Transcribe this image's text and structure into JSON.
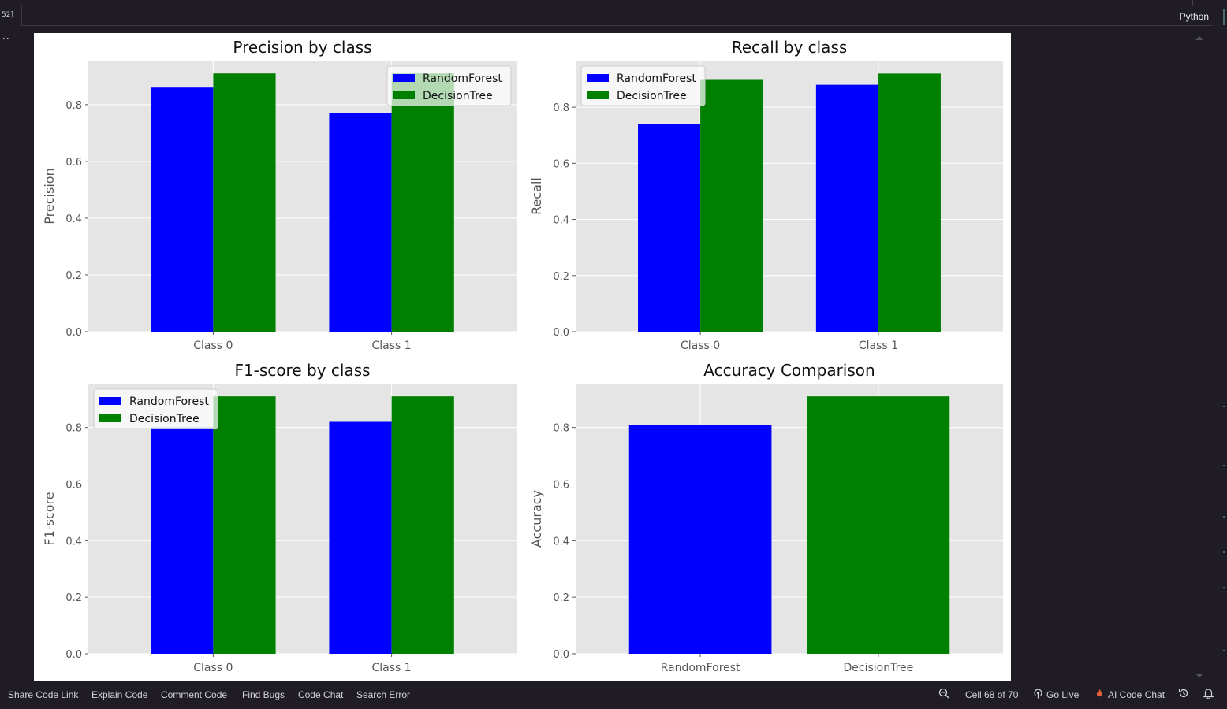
{
  "cell": {
    "execution_count": "52]",
    "kernel": "Python",
    "more_icon": "ellipsis-icon"
  },
  "status_bar": {
    "left_items": [
      "Share Code Link",
      "Explain Code",
      "Comment Code",
      "Find Bugs",
      "Code Chat",
      "Search Error"
    ],
    "cell_position": "Cell 68 of 70",
    "go_live": "Go Live",
    "ai_chat": "AI Code Chat"
  },
  "colors": {
    "random_forest": "#0000ff",
    "decision_tree": "#008000",
    "axes_bg": "#e5e5e5"
  },
  "chart_data": [
    {
      "type": "bar",
      "title": "Precision by class",
      "ylabel": "Precision",
      "xlabel": "",
      "categories": [
        "Class 0",
        "Class 1"
      ],
      "series": [
        {
          "name": "RandomForest",
          "values": [
            0.86,
            0.77
          ]
        },
        {
          "name": "DecisionTree",
          "values": [
            0.91,
            0.91
          ]
        }
      ],
      "ylim": [
        0,
        0.955
      ],
      "yticks": [
        "0.0",
        "0.2",
        "0.4",
        "0.6",
        "0.8"
      ],
      "grid": true,
      "legend": "top-right"
    },
    {
      "type": "bar",
      "title": "Recall by class",
      "ylabel": "Recall",
      "xlabel": "",
      "categories": [
        "Class 0",
        "Class 1"
      ],
      "series": [
        {
          "name": "RandomForest",
          "values": [
            0.74,
            0.88
          ]
        },
        {
          "name": "DecisionTree",
          "values": [
            0.9,
            0.92
          ]
        }
      ],
      "ylim": [
        0,
        0.966
      ],
      "yticks": [
        "0.0",
        "0.2",
        "0.4",
        "0.6",
        "0.8"
      ],
      "grid": true,
      "legend": "top-left"
    },
    {
      "type": "bar",
      "title": "F1-score by class",
      "ylabel": "F1-score",
      "xlabel": "",
      "categories": [
        "Class 0",
        "Class 1"
      ],
      "series": [
        {
          "name": "RandomForest",
          "values": [
            0.8,
            0.82
          ]
        },
        {
          "name": "DecisionTree",
          "values": [
            0.91,
            0.91
          ]
        }
      ],
      "ylim": [
        0,
        0.955
      ],
      "yticks": [
        "0.0",
        "0.2",
        "0.4",
        "0.6",
        "0.8"
      ],
      "grid": true,
      "legend": "top-left"
    },
    {
      "type": "bar",
      "title": "Accuracy Comparison",
      "ylabel": "Accuracy",
      "xlabel": "",
      "categories": [
        "RandomForest",
        "DecisionTree"
      ],
      "series": [
        {
          "name": "",
          "values": [
            0.81,
            0.91
          ]
        }
      ],
      "bar_colors": [
        "#0000ff",
        "#008000"
      ],
      "ylim": [
        0,
        0.955
      ],
      "yticks": [
        "0.0",
        "0.2",
        "0.4",
        "0.6",
        "0.8"
      ],
      "grid": true,
      "legend": "none"
    }
  ]
}
